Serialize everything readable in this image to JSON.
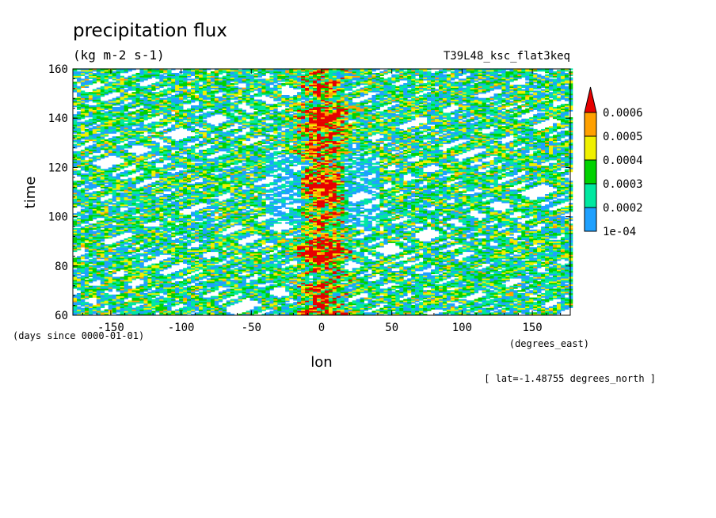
{
  "chart_data": {
    "type": "heatmap",
    "title": "precipitation flux",
    "units": "(kg m-2 s-1)",
    "dataset": "T39L48_ksc_flat3keq",
    "xlabel": "lon",
    "ylabel": "time",
    "x_units": "(degrees_east)",
    "y_units": "(days since 0000-01-01)",
    "slice_note": "[ lat=-1.48755 degrees_north ]",
    "xlim": [
      -177,
      177
    ],
    "ylim": [
      60,
      160
    ],
    "x_ticks": [
      "-150",
      "-100",
      "-50",
      "0",
      "50",
      "100",
      "150"
    ],
    "y_ticks": [
      "60",
      "80",
      "100",
      "120",
      "140",
      "160"
    ],
    "legend": {
      "placement": "right",
      "labels": [
        "1e-04",
        "0.0002",
        "0.0003",
        "0.0004",
        "0.0005",
        "0.0006"
      ],
      "colors": [
        "#1EA0FF",
        "#00E8A0",
        "#00D200",
        "#F0F000",
        "#FFA000",
        "#E60000"
      ]
    },
    "features": [
      {
        "name": "equatorial convection band",
        "lon_center": 0,
        "time_range": [
          60,
          160
        ],
        "peak_value": 0.0006
      },
      {
        "name": "eastward propagating streaks",
        "slope_deg_per_day": 4.5
      },
      {
        "name": "westward propagating streaks",
        "slope_deg_per_day": -3.2
      }
    ]
  }
}
